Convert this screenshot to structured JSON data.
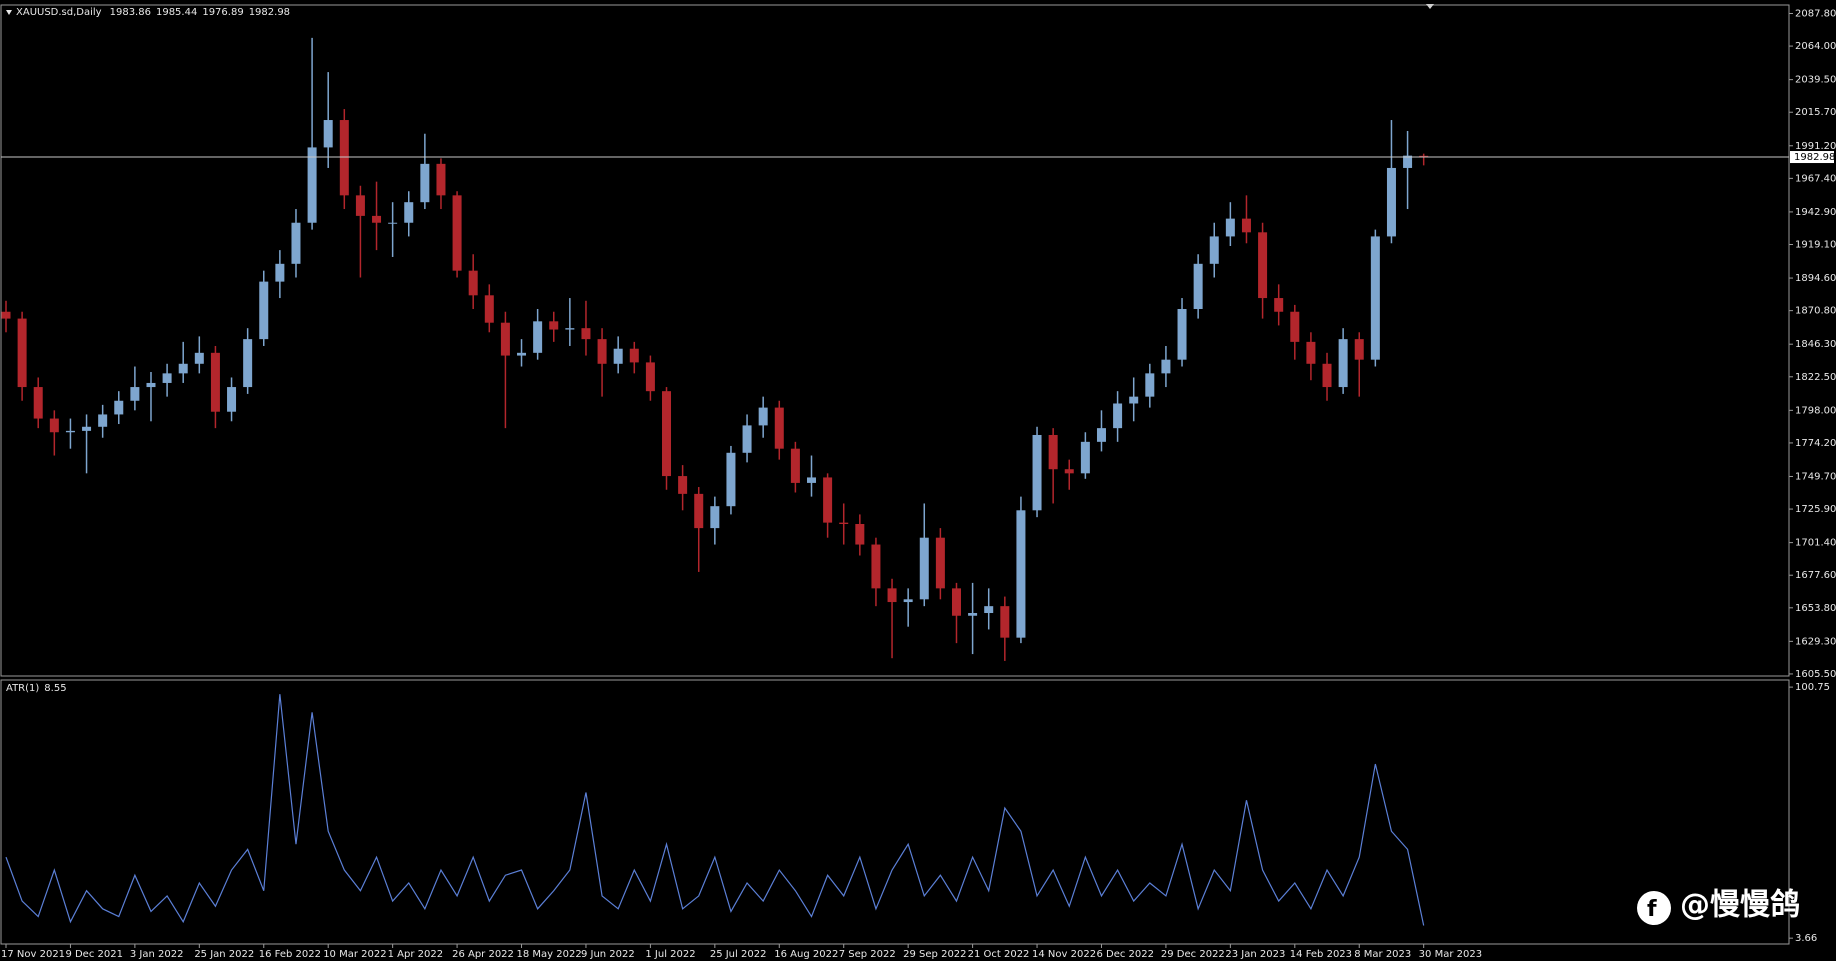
{
  "chart_data": {
    "type": "candlestick",
    "title": "XAUUSD.sd,Daily",
    "up_color": "#7ea6cf",
    "down_color": "#b3262c",
    "categories": [
      "17 Nov 2021",
      null,
      null,
      null,
      "9 Dec 2021",
      null,
      null,
      null,
      "3 Jan 2022",
      null,
      null,
      null,
      "25 Jan 2022",
      null,
      null,
      null,
      "16 Feb 2022",
      null,
      null,
      null,
      "10 Mar 2022",
      null,
      null,
      null,
      "1 Apr 2022",
      null,
      null,
      null,
      "26 Apr 2022",
      null,
      null,
      null,
      "18 May 2022",
      null,
      null,
      null,
      "9 Jun 2022",
      null,
      null,
      null,
      "1 Jul 2022",
      null,
      null,
      null,
      "25 Jul 2022",
      null,
      null,
      null,
      "16 Aug 2022",
      null,
      null,
      null,
      "7 Sep 2022",
      null,
      null,
      null,
      "29 Sep 2022",
      null,
      null,
      null,
      "21 Oct 2022",
      null,
      null,
      null,
      "14 Nov 2022",
      null,
      null,
      null,
      "6 Dec 2022",
      null,
      null,
      null,
      "29 Dec 2022",
      null,
      null,
      null,
      "23 Jan 2023",
      null,
      null,
      null,
      "14 Feb 2023",
      null,
      null,
      null,
      "8 Mar 2023",
      null,
      null,
      null,
      "30 Mar 2023"
    ],
    "open": [
      1870,
      1865,
      1815,
      1792,
      1782,
      1783,
      1786,
      1795,
      1805,
      1815,
      1818,
      1825,
      1832,
      1840,
      1797,
      1815,
      1850,
      1892,
      1905,
      1935,
      1990,
      2010,
      1955,
      1940,
      1935,
      1935,
      1950,
      1978,
      1955,
      1900,
      1882,
      1862,
      1838,
      1840,
      1863,
      1857,
      1858,
      1850,
      1832,
      1843,
      1833,
      1812,
      1750,
      1737,
      1712,
      1728,
      1767,
      1787,
      1800,
      1770,
      1745,
      1749,
      1716,
      1715,
      1700,
      1668,
      1658,
      1660,
      1705,
      1668,
      1648,
      1650,
      1655,
      1632,
      1725,
      1780,
      1755,
      1752,
      1775,
      1785,
      1803,
      1808,
      1825,
      1835,
      1872,
      1905,
      1925,
      1938,
      1928,
      1880,
      1870,
      1848,
      1832,
      1815,
      1850,
      1835,
      1925,
      1975,
      1983.86
    ],
    "high": [
      1878,
      1870,
      1822,
      1798,
      1792,
      1795,
      1802,
      1812,
      1830,
      1826,
      1832,
      1848,
      1852,
      1845,
      1822,
      1858,
      1900,
      1915,
      1945,
      2070,
      2045,
      2018,
      1962,
      1965,
      1950,
      1958,
      2000,
      1982,
      1958,
      1912,
      1890,
      1870,
      1850,
      1872,
      1870,
      1880,
      1878,
      1858,
      1852,
      1848,
      1838,
      1815,
      1758,
      1742,
      1735,
      1772,
      1795,
      1808,
      1805,
      1775,
      1765,
      1752,
      1730,
      1722,
      1705,
      1675,
      1668,
      1730,
      1712,
      1672,
      1672,
      1668,
      1662,
      1735,
      1786,
      1785,
      1762,
      1782,
      1798,
      1812,
      1822,
      1832,
      1845,
      1880,
      1912,
      1935,
      1950,
      1955,
      1935,
      1890,
      1875,
      1855,
      1840,
      1858,
      1855,
      1930,
      2010,
      2002,
      1985.44
    ],
    "low": [
      1855,
      1805,
      1785,
      1765,
      1770,
      1752,
      1778,
      1788,
      1798,
      1790,
      1808,
      1818,
      1825,
      1785,
      1790,
      1810,
      1845,
      1880,
      1895,
      1930,
      1975,
      1945,
      1895,
      1915,
      1910,
      1925,
      1945,
      1945,
      1895,
      1872,
      1855,
      1785,
      1830,
      1835,
      1848,
      1845,
      1838,
      1808,
      1825,
      1825,
      1805,
      1740,
      1725,
      1680,
      1700,
      1722,
      1760,
      1778,
      1762,
      1738,
      1735,
      1705,
      1700,
      1692,
      1655,
      1617,
      1640,
      1655,
      1660,
      1628,
      1620,
      1638,
      1615,
      1628,
      1720,
      1730,
      1740,
      1748,
      1768,
      1775,
      1790,
      1800,
      1815,
      1830,
      1865,
      1895,
      1918,
      1920,
      1865,
      1860,
      1835,
      1820,
      1805,
      1810,
      1808,
      1830,
      1920,
      1945,
      1976.89
    ],
    "close": [
      1865,
      1815,
      1792,
      1782,
      1783,
      1786,
      1795,
      1805,
      1815,
      1818,
      1825,
      1832,
      1840,
      1797,
      1815,
      1850,
      1892,
      1905,
      1935,
      1990,
      2010,
      1955,
      1940,
      1935,
      1935,
      1950,
      1978,
      1955,
      1900,
      1882,
      1862,
      1838,
      1840,
      1863,
      1857,
      1858,
      1850,
      1832,
      1843,
      1833,
      1812,
      1750,
      1737,
      1712,
      1728,
      1767,
      1787,
      1800,
      1770,
      1745,
      1749,
      1716,
      1715,
      1700,
      1668,
      1658,
      1660,
      1705,
      1668,
      1648,
      1650,
      1655,
      1632,
      1725,
      1780,
      1755,
      1752,
      1775,
      1785,
      1803,
      1808,
      1825,
      1835,
      1872,
      1905,
      1925,
      1938,
      1928,
      1880,
      1870,
      1848,
      1832,
      1815,
      1850,
      1835,
      1925,
      1975,
      1984,
      1982.98
    ],
    "ylim": [
      1604,
      2094
    ],
    "yticks": [
      {
        "value": 2087.8,
        "label": "2087.80"
      },
      {
        "value": 2064,
        "label": "2064.00"
      },
      {
        "value": 2039.5,
        "label": "2039.50"
      },
      {
        "value": 2015.7,
        "label": "2015.70"
      },
      {
        "value": 1991.2,
        "label": "1991.20"
      },
      {
        "value": 1967.4,
        "label": "1967.40"
      },
      {
        "value": 1942.9,
        "label": "1942.90"
      },
      {
        "value": 1919.1,
        "label": "1919.10"
      },
      {
        "value": 1894.6,
        "label": "1894.60"
      },
      {
        "value": 1870.8,
        "label": "1870.80"
      },
      {
        "value": 1846.3,
        "label": "1846.30"
      },
      {
        "value": 1822.5,
        "label": "1822.50"
      },
      {
        "value": 1798,
        "label": "1798.00"
      },
      {
        "value": 1774.2,
        "label": "1774.20"
      },
      {
        "value": 1749.7,
        "label": "1749.70"
      },
      {
        "value": 1725.9,
        "label": "1725.90"
      },
      {
        "value": 1701.4,
        "label": "1701.40"
      },
      {
        "value": 1677.6,
        "label": "1677.60"
      },
      {
        "value": 1653.8,
        "label": "1653.80"
      },
      {
        "value": 1629.3,
        "label": "1629.30"
      },
      {
        "value": 1605.5,
        "label": "1605.50"
      }
    ],
    "indicator": {
      "type": "line",
      "name": "ATR(1)",
      "color": "#5b7fd6",
      "values": [
        35,
        18,
        12,
        30,
        10,
        22,
        15,
        12,
        28,
        14,
        20,
        10,
        25,
        16,
        30,
        38,
        22,
        98,
        40,
        91,
        45,
        30,
        22,
        35,
        18,
        25,
        15,
        30,
        20,
        35,
        18,
        28,
        30,
        15,
        22,
        30,
        60,
        20,
        15,
        30,
        18,
        40,
        15,
        20,
        35,
        14,
        25,
        18,
        30,
        22,
        12,
        28,
        20,
        35,
        15,
        30,
        40,
        20,
        28,
        18,
        35,
        22,
        54,
        45,
        20,
        30,
        16,
        35,
        20,
        30,
        18,
        25,
        20,
        40,
        15,
        30,
        22,
        57,
        30,
        18,
        25,
        15,
        30,
        20,
        35,
        71,
        45,
        38,
        8.55
      ],
      "ylim": [
        1.4,
        103.5
      ],
      "yticks": [
        100.75,
        3.66
      ]
    },
    "watermark": "@慢慢鸽"
  }
}
